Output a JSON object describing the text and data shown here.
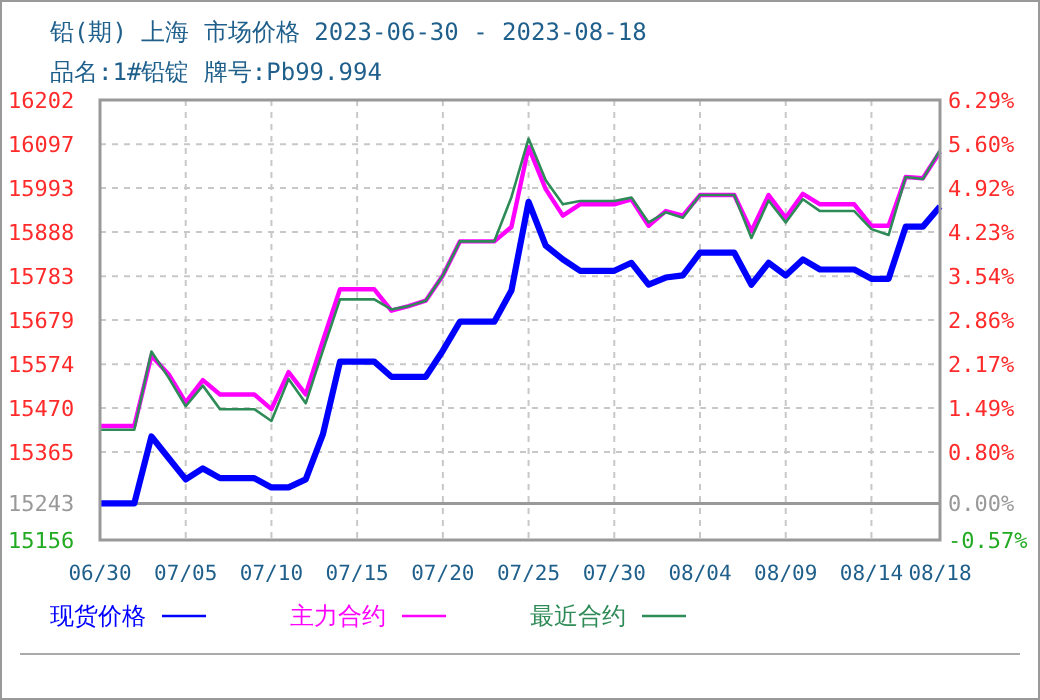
{
  "chart_data": {
    "type": "line",
    "title": "铅(期) 上海 市场价格 2023-06-30 - 2023-08-18",
    "subtitle": "品名:1#铅锭 牌号:Pb99.994",
    "x": [
      "2023-06-30",
      "2023-07-01",
      "2023-07-02",
      "2023-07-03",
      "2023-07-04",
      "2023-07-05",
      "2023-07-06",
      "2023-07-07",
      "2023-07-08",
      "2023-07-09",
      "2023-07-10",
      "2023-07-11",
      "2023-07-12",
      "2023-07-13",
      "2023-07-14",
      "2023-07-15",
      "2023-07-16",
      "2023-07-17",
      "2023-07-18",
      "2023-07-19",
      "2023-07-20",
      "2023-07-21",
      "2023-07-22",
      "2023-07-23",
      "2023-07-24",
      "2023-07-25",
      "2023-07-26",
      "2023-07-27",
      "2023-07-28",
      "2023-07-29",
      "2023-07-30",
      "2023-07-31",
      "2023-08-01",
      "2023-08-02",
      "2023-08-03",
      "2023-08-04",
      "2023-08-05",
      "2023-08-06",
      "2023-08-07",
      "2023-08-08",
      "2023-08-09",
      "2023-08-10",
      "2023-08-11",
      "2023-08-12",
      "2023-08-13",
      "2023-08-14",
      "2023-08-15",
      "2023-08-16",
      "2023-08-17",
      "2023-08-18"
    ],
    "series": [
      {
        "name": "现货价格",
        "color": "#0000ff",
        "values": [
          15243,
          15243,
          15243,
          15402,
          15351,
          15300,
          15326,
          15303,
          15303,
          15303,
          15281,
          15281,
          15300,
          15407,
          15580,
          15580,
          15580,
          15544,
          15544,
          15544,
          15606,
          15675,
          15675,
          15675,
          15749,
          15960,
          15856,
          15823,
          15796,
          15796,
          15796,
          15815,
          15763,
          15780,
          15785,
          15839,
          15839,
          15839,
          15763,
          15815,
          15785,
          15823,
          15799,
          15799,
          15799,
          15777,
          15777,
          15901,
          15901,
          15949
        ]
      },
      {
        "name": "主力合约",
        "color": "#ff00ff",
        "values": [
          15427,
          15427,
          15427,
          15594,
          15550,
          15483,
          15536,
          15502,
          15502,
          15502,
          15467,
          15555,
          15502,
          15629,
          15752,
          15752,
          15752,
          15701,
          15712,
          15725,
          15785,
          15866,
          15866,
          15866,
          15900,
          16090,
          15990,
          15927,
          15954,
          15954,
          15954,
          15966,
          15903,
          15938,
          15927,
          15976,
          15976,
          15976,
          15890,
          15976,
          15922,
          15979,
          15954,
          15954,
          15954,
          15903,
          15903,
          16019,
          16016,
          16079
        ]
      },
      {
        "name": "最近合约",
        "color": "#2e8b57",
        "values": [
          15418,
          15418,
          15418,
          15604,
          15542,
          15474,
          15523,
          15467,
          15467,
          15467,
          15439,
          15539,
          15481,
          15606,
          15728,
          15728,
          15728,
          15704,
          15712,
          15725,
          15785,
          15866,
          15866,
          15866,
          15971,
          16110,
          16011,
          15954,
          15962,
          15962,
          15962,
          15970,
          15911,
          15935,
          15922,
          15976,
          15976,
          15976,
          15874,
          15963,
          15911,
          15966,
          15938,
          15938,
          15938,
          15895,
          15881,
          16019,
          16014,
          16083
        ]
      }
    ],
    "xlim": [
      "2023-06-30",
      "2023-08-18"
    ],
    "xticks": [
      {
        "value": "2023-06-30",
        "label": "06/30"
      },
      {
        "value": "2023-07-05",
        "label": "07/05"
      },
      {
        "value": "2023-07-10",
        "label": "07/10"
      },
      {
        "value": "2023-07-15",
        "label": "07/15"
      },
      {
        "value": "2023-07-20",
        "label": "07/20"
      },
      {
        "value": "2023-07-25",
        "label": "07/25"
      },
      {
        "value": "2023-07-30",
        "label": "07/30"
      },
      {
        "value": "2023-08-04",
        "label": "08/04"
      },
      {
        "value": "2023-08-09",
        "label": "08/09"
      },
      {
        "value": "2023-08-14",
        "label": "08/14"
      },
      {
        "value": "2023-08-18",
        "label": "08/18"
      }
    ],
    "ylim": [
      15156,
      16202
    ],
    "yticks": [
      15156,
      15243,
      15365,
      15470,
      15574,
      15679,
      15783,
      15888,
      15993,
      16097,
      16202
    ],
    "y2lim": [
      -0.57,
      6.29
    ],
    "y2ticks": [
      {
        "value": -0.57,
        "label": "-0.57%"
      },
      {
        "value": 0,
        "label": "0.00%"
      },
      {
        "value": 0.8,
        "label": "0.80%"
      },
      {
        "value": 1.49,
        "label": "1.49%"
      },
      {
        "value": 2.17,
        "label": "2.17%"
      },
      {
        "value": 2.86,
        "label": "2.86%"
      },
      {
        "value": 3.54,
        "label": "3.54%"
      },
      {
        "value": 4.23,
        "label": "4.23%"
      },
      {
        "value": 4.92,
        "label": "4.92%"
      },
      {
        "value": 5.6,
        "label": "5.60%"
      },
      {
        "value": 6.29,
        "label": "6.29%"
      }
    ],
    "ref_lines": [
      {
        "axis": "y",
        "value": 15243,
        "color": "#999999",
        "line_style": "solid"
      }
    ],
    "grid": true,
    "legend": "bottom",
    "marker": "none",
    "line_style": "solid"
  }
}
